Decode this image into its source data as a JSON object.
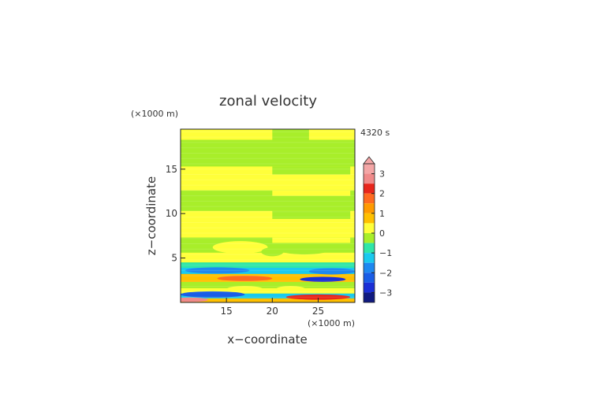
{
  "chart_data": {
    "type": "heatmap",
    "title": "zonal velocity",
    "xlabel": "x−coordinate",
    "ylabel": "z−coordinate",
    "x_unit": "(×1000 m)",
    "y_unit": "(×1000 m)",
    "time_label": "4320 s",
    "xlim": [
      10,
      29
    ],
    "ylim": [
      0,
      19.5
    ],
    "xticks": [
      15,
      20,
      25
    ],
    "xtick_labels": [
      "15",
      "20",
      "25"
    ],
    "yticks": [
      5,
      10,
      15
    ],
    "ytick_labels": [
      "5",
      "10",
      "15"
    ],
    "colorbar": {
      "tick_values": [
        3,
        2,
        1,
        0,
        -1,
        -2,
        -3
      ],
      "tick_labels": [
        "3",
        "2",
        "1",
        "0",
        "−1",
        "−2",
        "−3"
      ],
      "levels": [
        {
          "from": 3.0,
          "to": 3.5,
          "color": "#f4a6a6"
        },
        {
          "from": 2.5,
          "to": 3.0,
          "color": "#f08a8a"
        },
        {
          "from": 2.0,
          "to": 2.5,
          "color": "#e8261c"
        },
        {
          "from": 1.5,
          "to": 2.0,
          "color": "#ff6a20"
        },
        {
          "from": 1.0,
          "to": 1.5,
          "color": "#ff9a00"
        },
        {
          "from": 0.5,
          "to": 1.0,
          "color": "#ffc000"
        },
        {
          "from": 0.0,
          "to": 0.5,
          "color": "#ffff3a"
        },
        {
          "from": -0.5,
          "to": 0.0,
          "color": "#a8ee2a"
        },
        {
          "from": -1.0,
          "to": -0.5,
          "color": "#2fe6a8"
        },
        {
          "from": -1.5,
          "to": -1.0,
          "color": "#1ac9ee"
        },
        {
          "from": -2.0,
          "to": -1.5,
          "color": "#1e88f0"
        },
        {
          "from": -2.5,
          "to": -2.0,
          "color": "#1a5de6"
        },
        {
          "from": -3.0,
          "to": -2.5,
          "color": "#1b2fd6"
        },
        {
          "from": -3.5,
          "to": -3.0,
          "color": "#101a80"
        }
      ]
    }
  }
}
